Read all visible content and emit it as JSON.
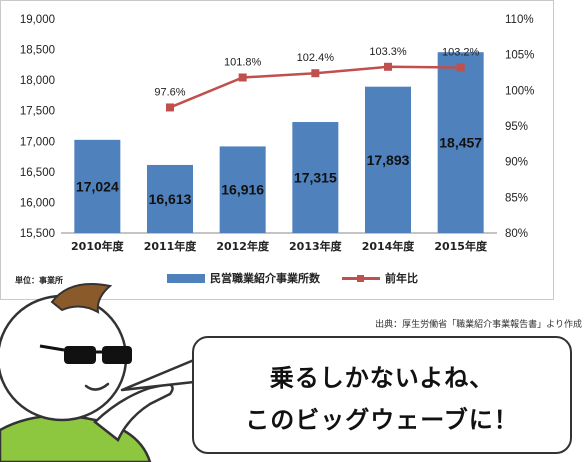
{
  "chart_data": {
    "type": "bar",
    "categories": [
      "2010年度",
      "2011年度",
      "2012年度",
      "2013年度",
      "2014年度",
      "2015年度"
    ],
    "series": [
      {
        "name": "民営職業紹介事業所数",
        "type": "bar",
        "axis": "left",
        "values": [
          17024,
          16613,
          16916,
          17315,
          17893,
          18457
        ]
      },
      {
        "name": "前年比",
        "type": "line",
        "axis": "right",
        "values": [
          null,
          97.6,
          101.8,
          102.4,
          103.3,
          103.2
        ]
      }
    ],
    "bar_labels": [
      "17,024",
      "16,613",
      "16,916",
      "17,315",
      "17,893",
      "18,457"
    ],
    "line_labels": [
      "",
      "97.6%",
      "101.8%",
      "102.4%",
      "103.3%",
      "103.2%"
    ],
    "ylim": [
      15500,
      19000
    ],
    "y_ticks": [
      "15,500",
      "16,000",
      "16,500",
      "17,000",
      "17,500",
      "18,000",
      "18,500",
      "19,000"
    ],
    "y_tick_values": [
      15500,
      16000,
      16500,
      17000,
      17500,
      18000,
      18500,
      19000
    ],
    "y2lim": [
      80,
      110
    ],
    "y2_ticks": [
      "80%",
      "85%",
      "90%",
      "95%",
      "100%",
      "105%",
      "110%"
    ],
    "y2_tick_values": [
      80,
      85,
      90,
      95,
      100,
      105,
      110
    ],
    "unit_label": "単位：事業所",
    "legend_position": "bottom",
    "grid": false
  },
  "colors": {
    "bar": "#4f81bd",
    "line": "#c0504d",
    "shirt": "#8dc63f",
    "hair": "#8b5a2b"
  },
  "source_note": "出典：厚生労働省「職業紹介事業報告書」より作成",
  "speech": {
    "line1": "乗るしかないよね、",
    "line2": "このビッグウェーブに！"
  },
  "character": {
    "icon": "sunglasses-character-icon"
  }
}
